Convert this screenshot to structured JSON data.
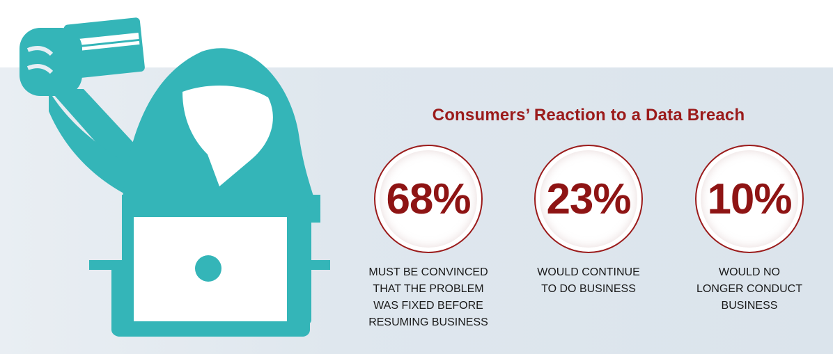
{
  "colors": {
    "accent": "#9b1b1b",
    "figure": "#34b5b8",
    "background_panel": "#dfe7ee"
  },
  "illustration": {
    "icon": "hacker-with-laptop-and-credit-card-icon"
  },
  "title": "Consumers’ Reaction to a Data Breach",
  "stats": [
    {
      "value": "68%",
      "lines": [
        "MUST BE CONVINCED",
        "THAT THE PROBLEM",
        "WAS FIXED BEFORE",
        "RESUMING BUSINESS"
      ]
    },
    {
      "value": "23%",
      "lines": [
        "WOULD CONTINUE",
        "TO DO BUSINESS"
      ]
    },
    {
      "value": "10%",
      "lines": [
        "WOULD NO",
        "LONGER CONDUCT",
        "BUSINESS"
      ]
    }
  ]
}
